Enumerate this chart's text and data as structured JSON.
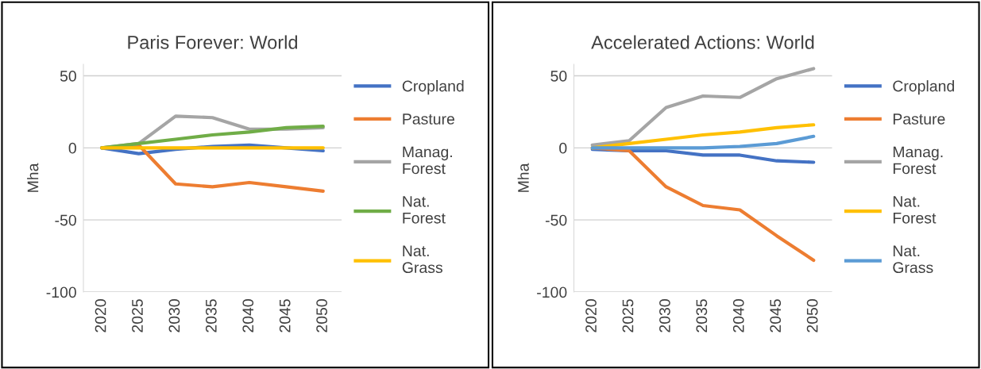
{
  "chart_data": [
    {
      "type": "line",
      "title": "Paris Forever: World",
      "ylabel": "Mha",
      "categories": [
        "2020",
        "2025",
        "2030",
        "2035",
        "2040",
        "2045",
        "2050"
      ],
      "ylim": [
        -100,
        58
      ],
      "yticks": [
        -100,
        -50,
        0,
        50
      ],
      "grid": "y",
      "legend": "right",
      "marker": "none",
      "line_style": "solid",
      "series": [
        {
          "name": "Cropland",
          "color": "#4472c4",
          "values": [
            0,
            -4,
            -1,
            1,
            2,
            0,
            -2
          ]
        },
        {
          "name": "Pasture",
          "color": "#ed7d31",
          "values": [
            0,
            2,
            -25,
            -27,
            -24,
            -27,
            -30
          ]
        },
        {
          "name": "Manag. Forest",
          "color": "#a5a5a5",
          "values": [
            0,
            3,
            22,
            21,
            13,
            13,
            14
          ]
        },
        {
          "name": "Nat. Forest",
          "color": "#70ad47",
          "values": [
            0,
            3,
            6,
            9,
            11,
            14,
            15
          ]
        },
        {
          "name": "Nat. Grass",
          "color": "#ffc000",
          "values": [
            0,
            0,
            0,
            0,
            0,
            0,
            0
          ]
        }
      ]
    },
    {
      "type": "line",
      "title": "Accelerated Actions: World",
      "ylabel": "Mha",
      "categories": [
        "2020",
        "2025",
        "2030",
        "2035",
        "2040",
        "2045",
        "2050"
      ],
      "ylim": [
        -100,
        58
      ],
      "yticks": [
        -100,
        -50,
        0,
        50
      ],
      "grid": "y",
      "legend": "right",
      "marker": "none",
      "line_style": "solid",
      "series": [
        {
          "name": "Cropland",
          "color": "#4472c4",
          "values": [
            -1,
            -2,
            -2,
            -5,
            -5,
            -9,
            -10
          ]
        },
        {
          "name": "Pasture",
          "color": "#ed7d31",
          "values": [
            0,
            -2,
            -27,
            -40,
            -43,
            -61,
            -78
          ]
        },
        {
          "name": "Manag. Forest",
          "color": "#a5a5a5",
          "values": [
            2,
            5,
            28,
            36,
            35,
            48,
            55
          ]
        },
        {
          "name": "Nat. Forest",
          "color": "#ffc000",
          "values": [
            0,
            3,
            6,
            9,
            11,
            14,
            16
          ]
        },
        {
          "name": "Nat. Grass",
          "color": "#5b9bd5",
          "values": [
            0,
            0,
            0,
            0,
            1,
            3,
            8
          ]
        }
      ]
    }
  ]
}
